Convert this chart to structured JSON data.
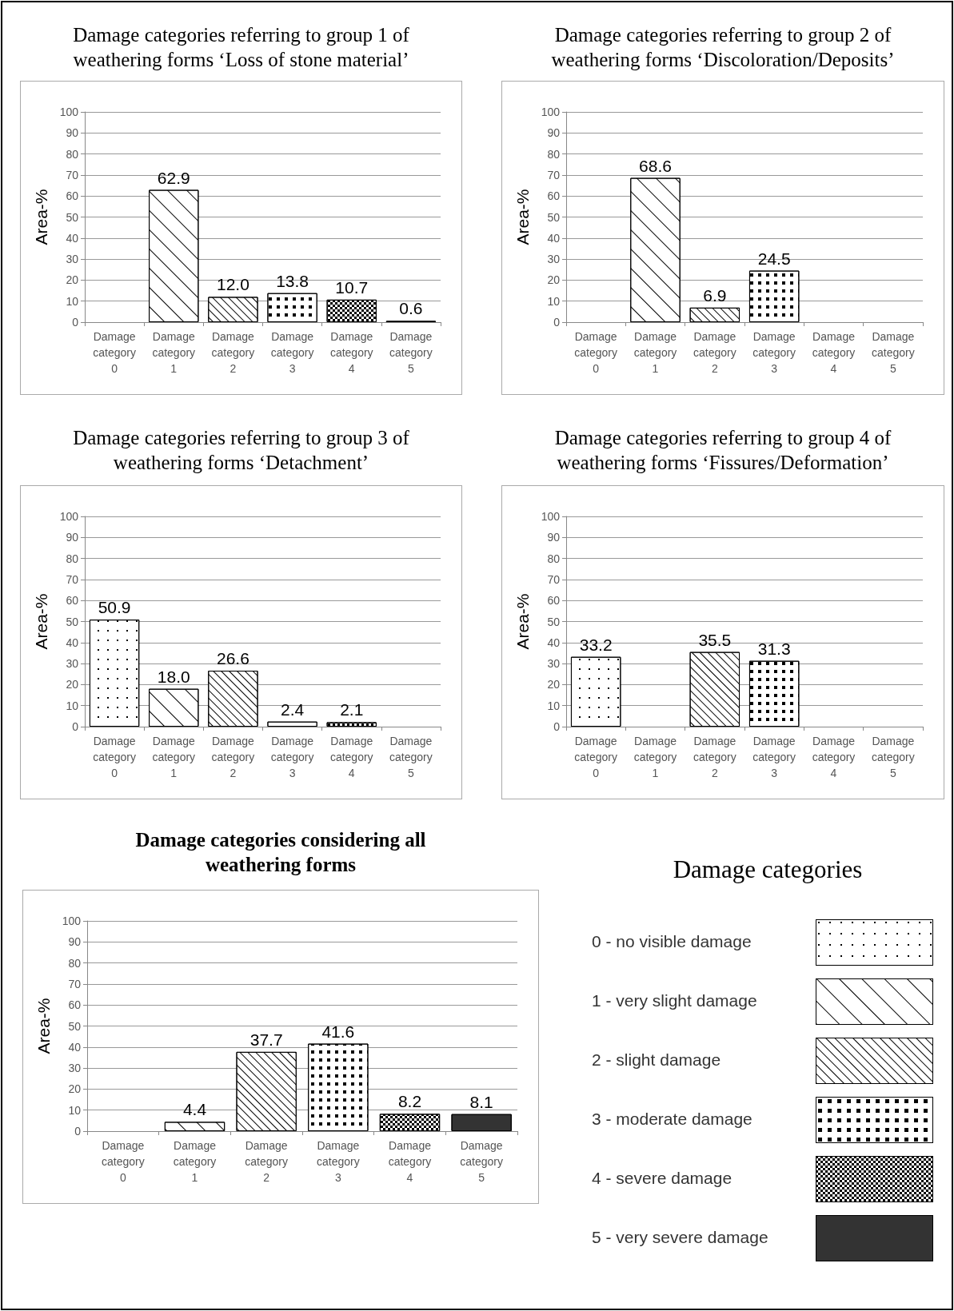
{
  "chart_data": [
    {
      "type": "bar",
      "title": "Damage categories referring to group 1 of weathering forms ‘Loss of stone material’",
      "ylabel": "Area-%",
      "categories": [
        "Damage category 0",
        "Damage category 1",
        "Damage category 2",
        "Damage category 3",
        "Damage category 4",
        "Damage category 5"
      ],
      "values": [
        null,
        62.9,
        12.0,
        13.8,
        10.7,
        0.6
      ],
      "value_labels": [
        null,
        "62.9",
        "12.0",
        "13.8",
        "10.7",
        "0.6"
      ],
      "colors": [
        "#ffffff",
        "#ffffff",
        "#ffffff",
        "#ffffff",
        "#ffffff",
        "#333333"
      ],
      "ylim": [
        0,
        100
      ],
      "yticks": [
        0,
        10,
        20,
        30,
        40,
        50,
        60,
        70,
        80,
        90,
        100
      ],
      "grid": "y"
    },
    {
      "type": "bar",
      "title": "Damage categories referring to group 2 of weathering forms ‘Discoloration/Deposits’",
      "ylabel": "Area-%",
      "categories": [
        "Damage category 0",
        "Damage category 1",
        "Damage category 2",
        "Damage category 3",
        "Damage category 4",
        "Damage category 5"
      ],
      "values": [
        null,
        68.6,
        6.9,
        24.5,
        null,
        null
      ],
      "value_labels": [
        null,
        "68.6",
        "6.9",
        "24.5",
        null,
        null
      ],
      "colors": [
        "#ffffff",
        "#ffffff",
        "#ffffff",
        "#ffffff",
        "#ffffff",
        "#333333"
      ],
      "ylim": [
        0,
        100
      ],
      "yticks": [
        0,
        10,
        20,
        30,
        40,
        50,
        60,
        70,
        80,
        90,
        100
      ],
      "grid": "y"
    },
    {
      "type": "bar",
      "title": "Damage categories referring to group 3 of weathering forms ‘Detachment’",
      "ylabel": "Area-%",
      "categories": [
        "Damage category 0",
        "Damage category 1",
        "Damage category 2",
        "Damage category 3",
        "Damage category 4",
        "Damage category 5"
      ],
      "values": [
        50.9,
        18.0,
        26.6,
        2.4,
        2.1,
        null
      ],
      "value_labels": [
        "50.9",
        "18.0",
        "26.6",
        "2.4",
        "2.1",
        null
      ],
      "colors": [
        "#ffffff",
        "#ffffff",
        "#ffffff",
        "#ffffff",
        "#ffffff",
        "#333333"
      ],
      "ylim": [
        0,
        100
      ],
      "yticks": [
        0,
        10,
        20,
        30,
        40,
        50,
        60,
        70,
        80,
        90,
        100
      ],
      "grid": "y"
    },
    {
      "type": "bar",
      "title": "Damage categories referring to group 4 of weathering forms ‘Fissures/Deformation’",
      "ylabel": "Area-%",
      "categories": [
        "Damage category 0",
        "Damage category 1",
        "Damage category 2",
        "Damage category 3",
        "Damage category 4",
        "Damage category 5"
      ],
      "values": [
        33.2,
        null,
        35.5,
        31.3,
        null,
        null
      ],
      "value_labels": [
        "33.2",
        null,
        "35.5",
        "31.3",
        null,
        null
      ],
      "colors": [
        "#ffffff",
        "#ffffff",
        "#ffffff",
        "#ffffff",
        "#ffffff",
        "#333333"
      ],
      "ylim": [
        0,
        100
      ],
      "yticks": [
        0,
        10,
        20,
        30,
        40,
        50,
        60,
        70,
        80,
        90,
        100
      ],
      "grid": "y"
    },
    {
      "type": "bar",
      "title": "Damage categories considering all weathering forms",
      "ylabel": "Area-%",
      "categories": [
        "Damage category 0",
        "Damage category 1",
        "Damage category 2",
        "Damage category 3",
        "Damage category 4",
        "Damage category 5"
      ],
      "values": [
        null,
        4.4,
        37.7,
        41.6,
        8.2,
        8.1
      ],
      "value_labels": [
        null,
        "4.4",
        "37.7",
        "41.6",
        "8.2",
        "8.1"
      ],
      "colors": [
        "#ffffff",
        "#ffffff",
        "#ffffff",
        "#ffffff",
        "#ffffff",
        "#333333"
      ],
      "ylim": [
        0,
        100
      ],
      "yticks": [
        0,
        10,
        20,
        30,
        40,
        50,
        60,
        70,
        80,
        90,
        100
      ],
      "grid": "y"
    },
    {
      "type": "other",
      "title": "Damage categories",
      "annotations": [
        "0 - no visible damage",
        "1 - very slight damage",
        "2 - slight damage",
        "3 - moderate damage",
        "4 - severe damage",
        "5 - very severe damage"
      ]
    }
  ]
}
